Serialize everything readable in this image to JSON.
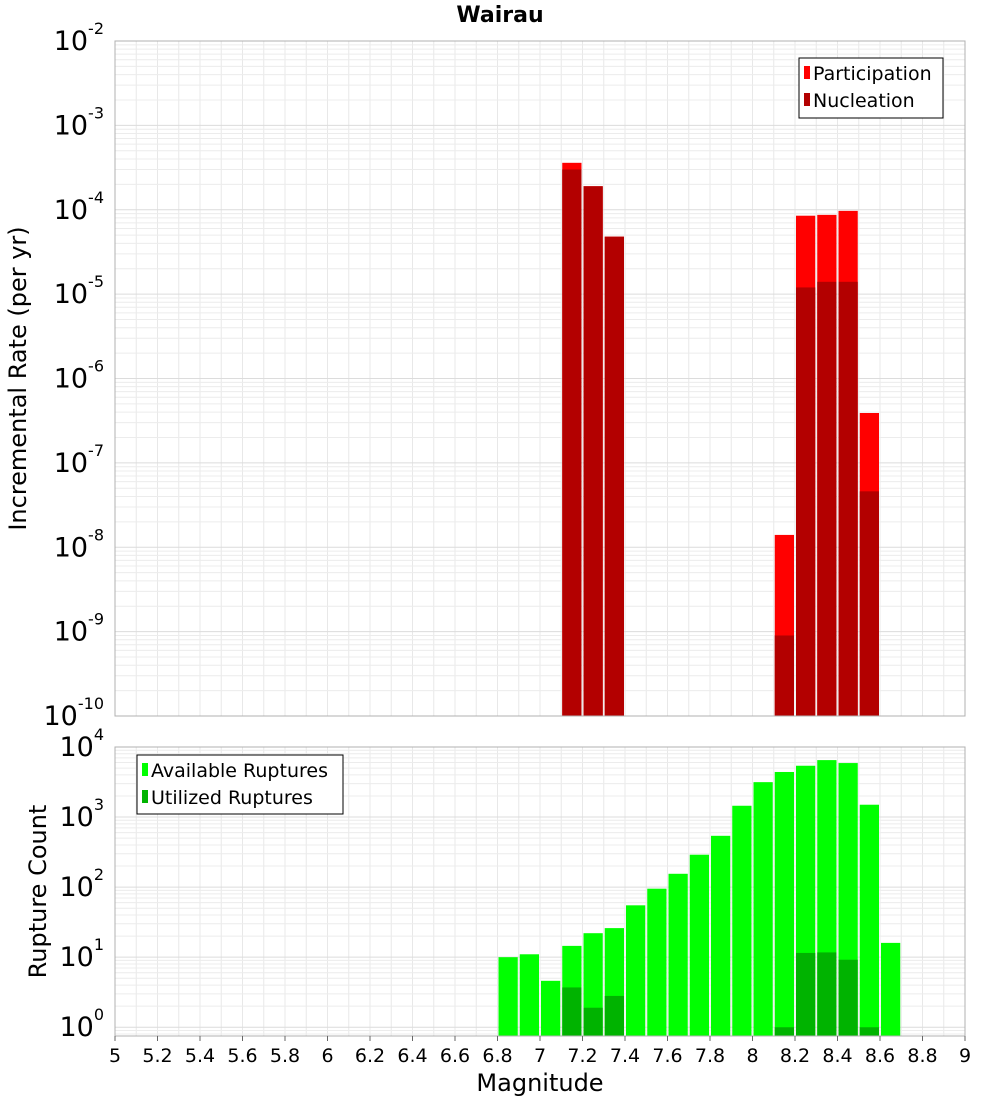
{
  "chart_data": [
    {
      "type": "bar",
      "title": "Wairau",
      "xlabel": "",
      "ylabel": "Incremental Rate (per yr)",
      "yscale": "log",
      "ylim": [
        1e-10,
        0.01
      ],
      "xlim": [
        5,
        9
      ],
      "grid": true,
      "legend_position": "top-right",
      "bar_width": 0.1,
      "y_tick_labels": [
        {
          "base": "10",
          "exp": "-2",
          "value": 0.01
        },
        {
          "base": "10",
          "exp": "-3",
          "value": 0.001
        },
        {
          "base": "10",
          "exp": "-4",
          "value": 0.0001
        },
        {
          "base": "10",
          "exp": "-5",
          "value": 1e-05
        },
        {
          "base": "10",
          "exp": "-6",
          "value": 1e-06
        },
        {
          "base": "10",
          "exp": "-7",
          "value": 1e-07
        },
        {
          "base": "10",
          "exp": "-8",
          "value": 1e-08
        },
        {
          "base": "10",
          "exp": "-9",
          "value": 1e-09
        },
        {
          "base": "10",
          "exp": "-10",
          "value": 1e-10
        }
      ],
      "series": [
        {
          "name": "Participation",
          "color": "#ff0000",
          "x": [
            7.15,
            7.25,
            7.35,
            8.15,
            8.25,
            8.35,
            8.45,
            8.55
          ],
          "values": [
            0.00036,
            0.00019,
            4.8e-05,
            1.4e-08,
            8.5e-05,
            8.7e-05,
            9.7e-05,
            3.9e-07
          ]
        },
        {
          "name": "Nucleation",
          "color": "#b30000",
          "x": [
            7.15,
            7.25,
            7.35,
            8.15,
            8.25,
            8.35,
            8.45,
            8.55
          ],
          "values": [
            0.0003,
            0.00019,
            4.8e-05,
            9e-10,
            1.2e-05,
            1.4e-05,
            1.4e-05,
            4.6e-08
          ]
        }
      ]
    },
    {
      "type": "bar",
      "title": "",
      "xlabel": "Magnitude",
      "ylabel": "Rupture Count",
      "yscale": "log",
      "ylim": [
        0.75,
        10000
      ],
      "xlim": [
        5,
        9
      ],
      "grid": true,
      "legend_position": "top-left",
      "bar_width": 0.1,
      "x_tick_labels": [
        "5",
        "5.2",
        "5.4",
        "5.6",
        "5.8",
        "6",
        "6.2",
        "6.4",
        "6.6",
        "6.8",
        "7",
        "7.2",
        "7.4",
        "7.6",
        "7.8",
        "8",
        "8.2",
        "8.4",
        "8.6",
        "8.8",
        "9"
      ],
      "y_tick_labels": [
        {
          "base": "10",
          "exp": "4",
          "value": 10000
        },
        {
          "base": "10",
          "exp": "3",
          "value": 1000
        },
        {
          "base": "10",
          "exp": "2",
          "value": 100
        },
        {
          "base": "10",
          "exp": "1",
          "value": 10
        },
        {
          "base": "10",
          "exp": "0",
          "value": 1
        }
      ],
      "series": [
        {
          "name": "Available Ruptures",
          "color": "#00ff00",
          "x": [
            6.85,
            6.95,
            7.05,
            7.15,
            7.25,
            7.35,
            7.45,
            7.55,
            7.65,
            7.75,
            7.85,
            7.95,
            8.05,
            8.15,
            8.25,
            8.35,
            8.45,
            8.55,
            8.65
          ],
          "values": [
            10,
            11,
            4.6,
            14.5,
            22,
            26,
            55,
            95,
            155,
            290,
            540,
            1450,
            3150,
            4400,
            5400,
            6500,
            5900,
            1500,
            16
          ]
        },
        {
          "name": "Utilized Ruptures",
          "color": "#00b300",
          "x": [
            7.15,
            7.25,
            7.35,
            8.15,
            8.25,
            8.35,
            8.45,
            8.55
          ],
          "values": [
            3.7,
            1.9,
            2.8,
            1,
            11.5,
            11.7,
            9.2,
            1
          ]
        }
      ]
    }
  ]
}
